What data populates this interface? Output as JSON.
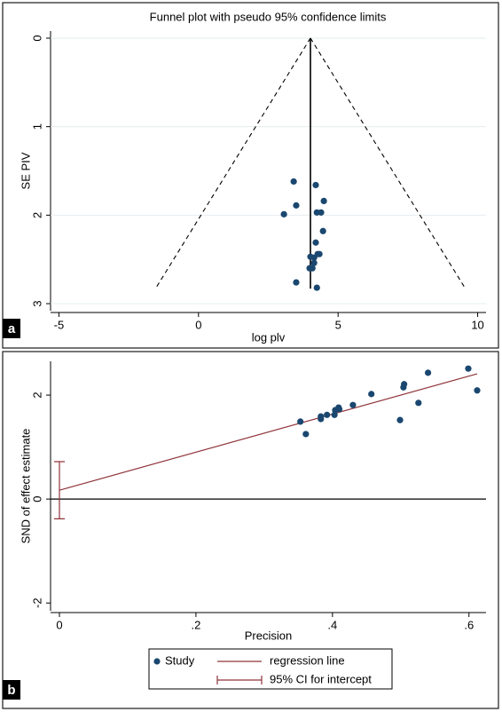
{
  "chart_data": [
    {
      "type": "scatter",
      "panel_label": "a",
      "title": "Funnel plot with pseudo 95% confidence limits",
      "x_label": "log plv",
      "y_label": "SE PIV",
      "xlim": [
        -5.3,
        10.3
      ],
      "ylim": [
        3.08,
        -0.08
      ],
      "xticks": [
        -5,
        0,
        5,
        10
      ],
      "yticks": [
        0,
        1,
        2,
        3
      ],
      "grid": true,
      "x": [
        3.41,
        4.2,
        3.5,
        4.49,
        3.06,
        4.24,
        4.39,
        4.46,
        4.2,
        4.01,
        4.27,
        4.14,
        4.14,
        3.98,
        4.08,
        3.5,
        4.24,
        4.33
      ],
      "series": [
        {
          "color": "#1a476f",
          "values": [
            1.62,
            1.66,
            1.89,
            1.84,
            1.99,
            1.97,
            1.97,
            2.18,
            2.31,
            2.47,
            2.44,
            2.48,
            2.54,
            2.6,
            2.6,
            2.76,
            2.82,
            2.44
          ]
        }
      ],
      "lines": [
        {
          "style": "solid",
          "color": "#000000",
          "x": [
            4.01,
            4.01
          ],
          "values": [
            0,
            2.83
          ]
        },
        {
          "style": "dashed",
          "color": "#000000",
          "x": [
            4.01,
            -1.54
          ],
          "values": [
            0,
            2.83
          ]
        },
        {
          "style": "dashed",
          "color": "#000000",
          "x": [
            4.01,
            9.56
          ],
          "values": [
            0,
            2.83
          ]
        }
      ]
    },
    {
      "type": "scatter",
      "panel_label": "b",
      "x_label": "Precision",
      "y_label": "SND of effect estimate",
      "xlim": [
        -0.013,
        0.625
      ],
      "ylim": [
        -2.15,
        2.65
      ],
      "xticks": [
        0,
        {
          "value": 0.2,
          "label": ".2"
        },
        {
          "value": 0.4,
          "label": ".4"
        },
        {
          "value": 0.6,
          "label": ".6"
        }
      ],
      "yticks": [
        -2,
        0,
        2
      ],
      "grid": false,
      "reference_line_y": 0,
      "x": [
        0.353,
        0.361,
        0.383,
        0.383,
        0.392,
        0.403,
        0.404,
        0.409,
        0.41,
        0.43,
        0.457,
        0.499,
        0.504,
        0.505,
        0.526,
        0.54,
        0.599,
        0.612
      ],
      "series": [
        {
          "name": "Study",
          "color": "#1a476f",
          "values": [
            1.49,
            1.25,
            1.54,
            1.59,
            1.62,
            1.62,
            1.71,
            1.76,
            1.73,
            1.81,
            2.02,
            1.52,
            2.15,
            2.21,
            1.85,
            2.43,
            2.51,
            2.09
          ]
        }
      ],
      "regression_line": {
        "name": "regression line",
        "color": "#90353b",
        "x": [
          0,
          0.612
        ],
        "values": [
          0.17,
          2.41
        ]
      },
      "intercept_ci": {
        "name": "95% CI for intercept",
        "color": "#90353b",
        "x": 0,
        "values": [
          -0.38,
          0.72
        ]
      }
    }
  ]
}
